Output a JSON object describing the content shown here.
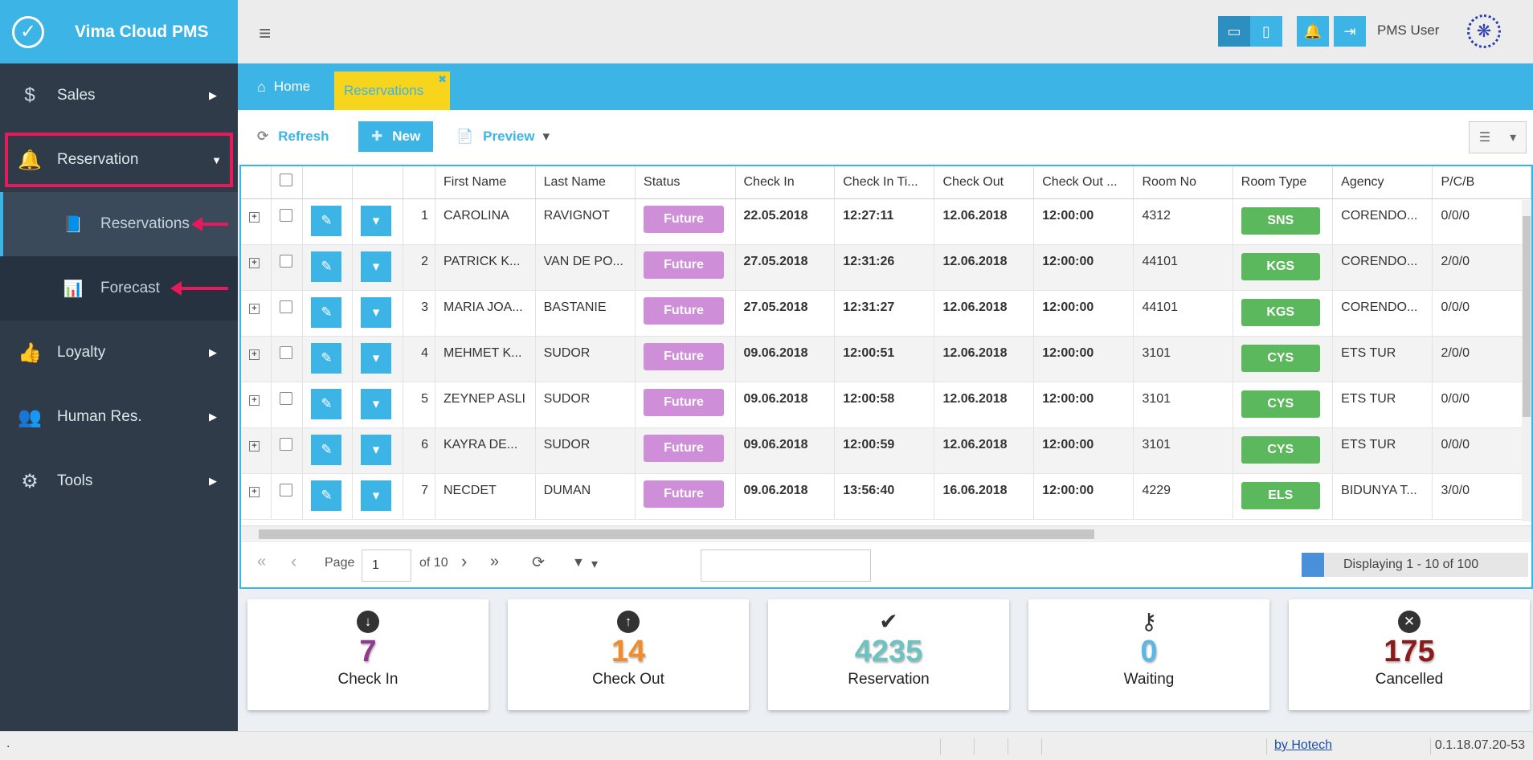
{
  "brand": {
    "title": "Vima Cloud PMS",
    "logo_glyph": "✓"
  },
  "sidebar": {
    "items": [
      {
        "label": "Sales",
        "icon": "dollar-icon",
        "glyph": "$"
      },
      {
        "label": "Reservation",
        "icon": "bell-icon",
        "glyph": "🔔"
      },
      {
        "label": "Loyalty",
        "icon": "thumbs-up-icon",
        "glyph": "👍"
      },
      {
        "label": "Human Res.",
        "icon": "users-icon",
        "glyph": "👥"
      },
      {
        "label": "Tools",
        "icon": "gears-icon",
        "glyph": "⚙"
      }
    ],
    "sub_items": [
      {
        "label": "Reservations",
        "icon": "book-icon",
        "glyph": "📘"
      },
      {
        "label": "Forecast",
        "icon": "bar-chart-icon",
        "glyph": "📊"
      }
    ]
  },
  "topbar": {
    "user": "PMS User",
    "hamburger": "≡",
    "desktop": "▭",
    "mobile": "▯",
    "bell": "🔔",
    "logout": "⇥",
    "user_logo": "❋"
  },
  "tabs": {
    "home": "Home",
    "reservations": "Reservations",
    "close": "✖",
    "home_glyph": "⌂"
  },
  "toolbar": {
    "refresh": "Refresh",
    "new": "New",
    "preview": "Preview",
    "refresh_glyph": "⟳",
    "new_glyph": "✚",
    "preview_glyph": "📄",
    "caret": "▾",
    "settings_glyph": "☰"
  },
  "grid": {
    "columns": [
      "First Name",
      "Last Name",
      "Status",
      "Check In",
      "Check In Ti...",
      "Check Out",
      "Check Out ...",
      "Room No",
      "Room Type",
      "Agency",
      "P/C/B"
    ],
    "rows": [
      {
        "no": "1",
        "first": "CAROLINA",
        "last": "RAVIGNOT",
        "status": "Future",
        "checkin": "22.05.2018",
        "checkin_time": "12:27:11",
        "checkout": "12.06.2018",
        "checkout_time": "12:00:00",
        "room_no": "4312",
        "room_type": "SNS",
        "agency": "CORENDO...",
        "pcb": "0/0/0"
      },
      {
        "no": "2",
        "first": "PATRICK K...",
        "last": "VAN DE PO...",
        "status": "Future",
        "checkin": "27.05.2018",
        "checkin_time": "12:31:26",
        "checkout": "12.06.2018",
        "checkout_time": "12:00:00",
        "room_no": "44101",
        "room_type": "KGS",
        "agency": "CORENDO...",
        "pcb": "2/0/0"
      },
      {
        "no": "3",
        "first": "MARIA JOA...",
        "last": "BASTANIE",
        "status": "Future",
        "checkin": "27.05.2018",
        "checkin_time": "12:31:27",
        "checkout": "12.06.2018",
        "checkout_time": "12:00:00",
        "room_no": "44101",
        "room_type": "KGS",
        "agency": "CORENDO...",
        "pcb": "0/0/0"
      },
      {
        "no": "4",
        "first": "MEHMET K...",
        "last": "SUDOR",
        "status": "Future",
        "checkin": "09.06.2018",
        "checkin_time": "12:00:51",
        "checkout": "12.06.2018",
        "checkout_time": "12:00:00",
        "room_no": "3101",
        "room_type": "CYS",
        "agency": "ETS TUR",
        "pcb": "2/0/0"
      },
      {
        "no": "5",
        "first": "ZEYNEP ASLI",
        "last": "SUDOR",
        "status": "Future",
        "checkin": "09.06.2018",
        "checkin_time": "12:00:58",
        "checkout": "12.06.2018",
        "checkout_time": "12:00:00",
        "room_no": "3101",
        "room_type": "CYS",
        "agency": "ETS TUR",
        "pcb": "0/0/0"
      },
      {
        "no": "6",
        "first": "KAYRA DE...",
        "last": "SUDOR",
        "status": "Future",
        "checkin": "09.06.2018",
        "checkin_time": "12:00:59",
        "checkout": "12.06.2018",
        "checkout_time": "12:00:00",
        "room_no": "3101",
        "room_type": "CYS",
        "agency": "ETS TUR",
        "pcb": "0/0/0"
      },
      {
        "no": "7",
        "first": "NECDET",
        "last": "DUMAN",
        "status": "Future",
        "checkin": "09.06.2018",
        "checkin_time": "13:56:40",
        "checkout": "16.06.2018",
        "checkout_time": "12:00:00",
        "room_no": "4229",
        "room_type": "ELS",
        "agency": "BIDUNYA T...",
        "pcb": "3/0/0"
      }
    ]
  },
  "pager": {
    "page_label": "Page",
    "page_value": "1",
    "of_label": "of 10",
    "display": "Displaying 1 - 10 of 100",
    "first": "«",
    "prev": "‹",
    "next": "›",
    "last": "»",
    "reload": "⟳",
    "filter": "▼",
    "caret": "▾"
  },
  "stats": [
    {
      "value": "7",
      "label": "Check In",
      "color": "#8e3a8e",
      "icon": "arrow-circle-down-icon",
      "glyph": "↓"
    },
    {
      "value": "14",
      "label": "Check Out",
      "color": "#f28c28",
      "icon": "arrow-circle-up-icon",
      "glyph": "↑"
    },
    {
      "value": "4235",
      "label": "Reservation",
      "color": "#6cc3c0",
      "icon": "check-icon",
      "glyph": "✔"
    },
    {
      "value": "0",
      "label": "Waiting",
      "color": "#5bb8e6",
      "icon": "key-icon",
      "glyph": "⚷"
    },
    {
      "value": "175",
      "label": "Cancelled",
      "color": "#8b1a1a",
      "icon": "times-circle-icon",
      "glyph": "✕"
    }
  ],
  "footer": {
    "left": ".",
    "by": "by Hotech",
    "version": "0.1.18.07.20-53"
  },
  "colors": {
    "accent": "#3cb4e6",
    "sidebar": "#2f3b48",
    "status_future": "#cf8fd8",
    "room_type": "#5cb85c",
    "tab_active": "#f7d51d",
    "highlight": "#e6195a"
  }
}
